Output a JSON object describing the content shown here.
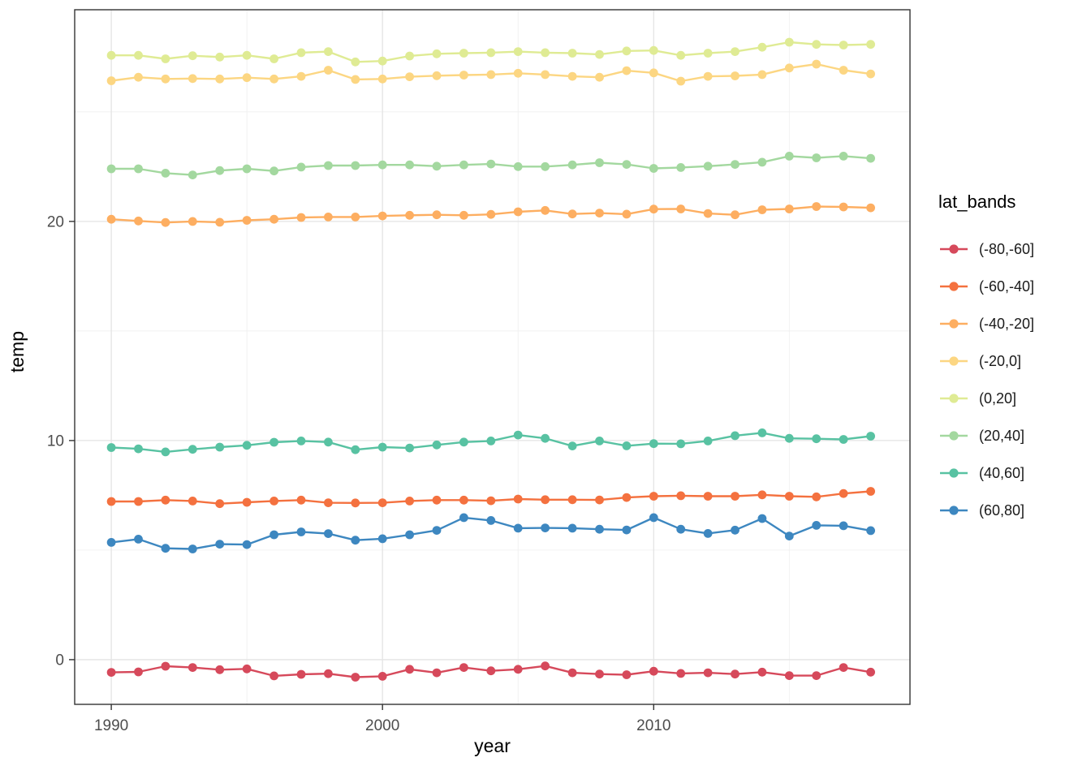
{
  "axis": {
    "x_label": "year",
    "y_label": "temp",
    "x_tick_labels": [
      "1990",
      "2000",
      "2010"
    ],
    "y_tick_labels": [
      "0",
      "10",
      "20"
    ]
  },
  "legend": {
    "title": "lat_bands",
    "items": [
      {
        "label": "(-80,-60]",
        "color": "#d6495b"
      },
      {
        "label": "(-60,-40]",
        "color": "#f4713f"
      },
      {
        "label": "(-40,-20]",
        "color": "#fdae61"
      },
      {
        "label": "(-20,0]",
        "color": "#fcd682"
      },
      {
        "label": "(0,20]",
        "color": "#dfeb94"
      },
      {
        "label": "(20,40]",
        "color": "#a3d89f"
      },
      {
        "label": "(40,60]",
        "color": "#58c2a2"
      },
      {
        "label": "(60,80]",
        "color": "#3d87c0"
      }
    ]
  },
  "chart_data": {
    "type": "line",
    "title": "",
    "xlabel": "year",
    "ylabel": "temp",
    "legend_title": "lat_bands",
    "legend_position": "right",
    "grid": true,
    "x_domain": [
      1988.65,
      2019.45
    ],
    "y_domain": [
      -2.04,
      29.66
    ],
    "x_major_ticks": [
      1990,
      2000,
      2010
    ],
    "x_minor_ticks": [
      1995,
      2005,
      2015
    ],
    "y_major_ticks": [
      0,
      10,
      20
    ],
    "y_minor_ticks": [
      5,
      15,
      25
    ],
    "x": [
      1990,
      1991,
      1992,
      1993,
      1994,
      1995,
      1996,
      1997,
      1998,
      1999,
      2000,
      2001,
      2002,
      2003,
      2004,
      2005,
      2006,
      2007,
      2008,
      2009,
      2010,
      2011,
      2012,
      2013,
      2014,
      2015,
      2016,
      2017,
      2018
    ],
    "series": [
      {
        "name": "(-80,-60]",
        "color": "#d6495b",
        "values": [
          -0.58,
          -0.56,
          -0.3,
          -0.36,
          -0.46,
          -0.42,
          -0.74,
          -0.67,
          -0.64,
          -0.8,
          -0.76,
          -0.44,
          -0.6,
          -0.36,
          -0.51,
          -0.44,
          -0.29,
          -0.6,
          -0.66,
          -0.69,
          -0.53,
          -0.63,
          -0.6,
          -0.66,
          -0.57,
          -0.73,
          -0.73,
          -0.36,
          -0.57
        ]
      },
      {
        "name": "(-60,-40]",
        "color": "#f4713f",
        "values": [
          7.22,
          7.22,
          7.28,
          7.24,
          7.12,
          7.18,
          7.24,
          7.28,
          7.16,
          7.15,
          7.16,
          7.24,
          7.28,
          7.28,
          7.25,
          7.33,
          7.3,
          7.3,
          7.29,
          7.4,
          7.46,
          7.48,
          7.46,
          7.46,
          7.52,
          7.46,
          7.43,
          7.58,
          7.68
        ]
      },
      {
        "name": "(-40,-20]",
        "color": "#fdae61",
        "values": [
          20.1,
          20.02,
          19.95,
          20.0,
          19.96,
          20.05,
          20.1,
          20.18,
          20.2,
          20.2,
          20.25,
          20.28,
          20.3,
          20.28,
          20.32,
          20.44,
          20.5,
          20.34,
          20.38,
          20.33,
          20.56,
          20.57,
          20.36,
          20.3,
          20.53,
          20.57,
          20.68,
          20.66,
          20.62
        ]
      },
      {
        "name": "(-20,0]",
        "color": "#fcd682",
        "values": [
          26.42,
          26.58,
          26.5,
          26.52,
          26.5,
          26.56,
          26.5,
          26.62,
          26.9,
          26.48,
          26.5,
          26.6,
          26.65,
          26.68,
          26.7,
          26.76,
          26.7,
          26.62,
          26.58,
          26.88,
          26.78,
          26.4,
          26.62,
          26.64,
          26.7,
          27.0,
          27.18,
          26.9,
          26.73
        ]
      },
      {
        "name": "(0,20]",
        "color": "#dfeb94",
        "values": [
          27.58,
          27.58,
          27.42,
          27.56,
          27.5,
          27.58,
          27.42,
          27.7,
          27.75,
          27.28,
          27.32,
          27.55,
          27.65,
          27.68,
          27.7,
          27.75,
          27.7,
          27.68,
          27.62,
          27.78,
          27.8,
          27.58,
          27.68,
          27.75,
          27.95,
          28.18,
          28.08,
          28.05,
          28.08
        ]
      },
      {
        "name": "(20,40]",
        "color": "#a3d89f",
        "values": [
          22.4,
          22.4,
          22.2,
          22.12,
          22.32,
          22.4,
          22.3,
          22.48,
          22.55,
          22.55,
          22.58,
          22.58,
          22.52,
          22.58,
          22.62,
          22.5,
          22.5,
          22.58,
          22.68,
          22.6,
          22.42,
          22.46,
          22.52,
          22.6,
          22.7,
          22.98,
          22.9,
          22.98,
          22.88
        ]
      },
      {
        "name": "(40,60]",
        "color": "#58c2a2",
        "values": [
          9.68,
          9.62,
          9.48,
          9.6,
          9.7,
          9.78,
          9.92,
          9.98,
          9.93,
          9.58,
          9.7,
          9.66,
          9.8,
          9.93,
          9.98,
          10.25,
          10.1,
          9.75,
          9.98,
          9.76,
          9.86,
          9.85,
          9.98,
          10.22,
          10.35,
          10.1,
          10.08,
          10.05,
          10.2
        ]
      },
      {
        "name": "(60,80]",
        "color": "#3d87c0",
        "values": [
          5.35,
          5.5,
          5.08,
          5.05,
          5.27,
          5.25,
          5.7,
          5.83,
          5.75,
          5.45,
          5.52,
          5.7,
          5.9,
          6.48,
          6.35,
          6.0,
          6.01,
          6.0,
          5.95,
          5.92,
          6.48,
          5.95,
          5.76,
          5.91,
          6.44,
          5.64,
          6.13,
          6.11,
          5.89
        ]
      }
    ]
  },
  "style": {
    "panel_border": "#333333",
    "grid_major": "#e4e4e4",
    "grid_minor": "#f0f0f0",
    "tick_color": "#333333",
    "tick_label_color": "#4d4d4d"
  }
}
